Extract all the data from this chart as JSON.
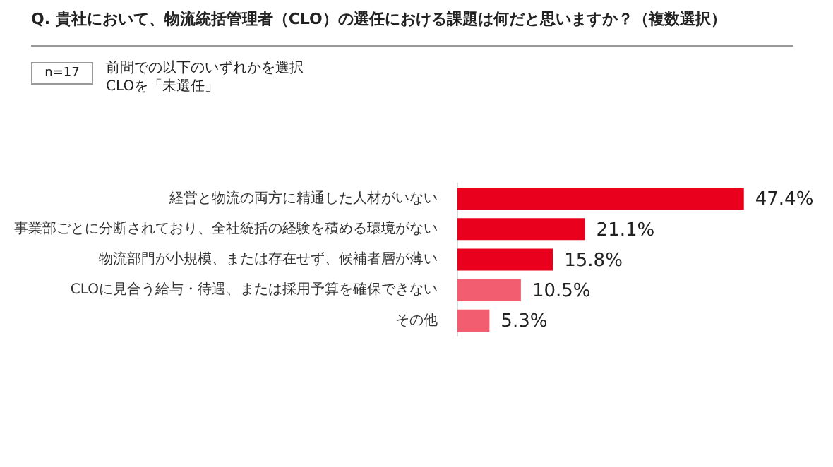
{
  "chart_data": {
    "type": "bar",
    "orientation": "horizontal",
    "title": "Q.  貴社において、物流統括管理者（CLO）の選任における課題は何だと思いますか？（複数選択）",
    "annotations": [
      "n=17",
      "前問での以下のいずれかを選択",
      "CLOを「未選任」"
    ],
    "categories": [
      "経営と物流の両方に精通した人材がいない",
      "事業部ごとに分断されており、全社統括の経験を積める環境がない",
      "物流部門が小規模、または存在せず、候補者層が薄い",
      "CLOに見合う給与・待遇、または採用予算を確保できない",
      "その他"
    ],
    "values": [
      47.4,
      21.1,
      15.8,
      10.5,
      5.3
    ],
    "value_labels": [
      "47.4%",
      "21.1%",
      "15.8%",
      "10.5%",
      "5.3%"
    ],
    "colors": [
      "#e8001d",
      "#e8001d",
      "#e8001d",
      "#f25d70",
      "#f25d70"
    ],
    "legend": false
  }
}
